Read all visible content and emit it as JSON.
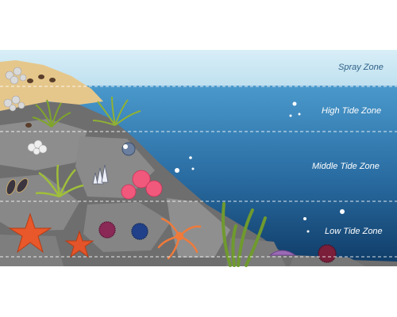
{
  "zones": [
    {
      "label": "Spray Zone"
    },
    {
      "label": "High Tide Zone"
    },
    {
      "label": "Middle Tide Zone"
    },
    {
      "label": "Low Tide Zone"
    }
  ],
  "colors": {
    "sky": "#cfe8f3",
    "water_top": "#3f8fc4",
    "water_bottom": "#0e3a63",
    "sand": "#e8c98f",
    "rock": "#6f6f6f",
    "rock_light": "#9a9a9a",
    "seaweed": "#9fbf3a",
    "starfish": "#e65a2a",
    "anemone": "#f05a7e",
    "urchin_purple": "#8e2a5a",
    "urchin_blue": "#1f3d8a"
  }
}
